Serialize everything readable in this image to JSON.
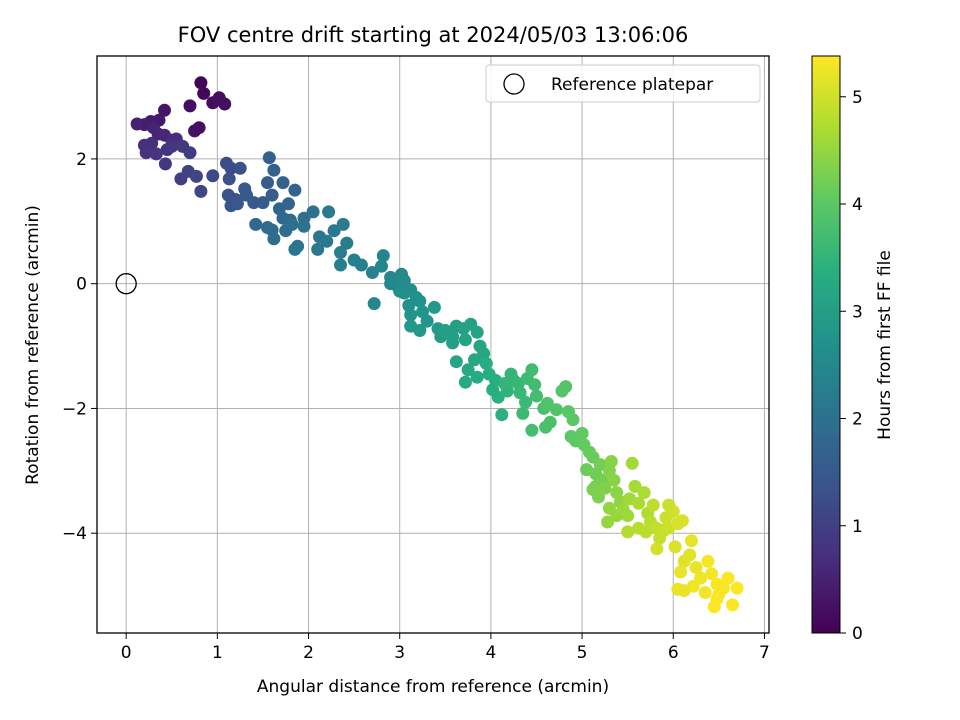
{
  "chart_data": {
    "type": "scatter",
    "title": "FOV centre drift starting at 2024/05/03 13:06:06",
    "xlabel": "Angular distance from reference (arcmin)",
    "ylabel": "Rotation from reference (arcmin)",
    "xlim": [
      -0.32,
      7.05
    ],
    "ylim": [
      -5.6,
      3.65
    ],
    "xticks": [
      0,
      1,
      2,
      3,
      4,
      5,
      6,
      7
    ],
    "yticks": [
      -4,
      -2,
      0,
      2
    ],
    "grid": true,
    "legend": {
      "position": "top-right",
      "entries": [
        {
          "label": "Reference platepar",
          "marker": "open-circle"
        }
      ]
    },
    "reference_point": {
      "x": 0,
      "y": 0
    },
    "colorbar": {
      "label": "Hours from first FF file",
      "colormap": "viridis",
      "range": [
        0,
        5.38
      ],
      "ticks": [
        0,
        1,
        2,
        3,
        4,
        5
      ]
    },
    "points": [
      [
        0.82,
        3.22,
        0.05
      ],
      [
        0.85,
        3.05,
        0.1
      ],
      [
        0.95,
        2.9,
        0.15
      ],
      [
        1.02,
        2.98,
        0.18
      ],
      [
        1.08,
        2.88,
        0.2
      ],
      [
        0.7,
        2.85,
        0.22
      ],
      [
        0.8,
        2.5,
        0.25
      ],
      [
        0.75,
        2.45,
        0.28
      ],
      [
        0.42,
        2.78,
        0.3
      ],
      [
        0.36,
        2.62,
        0.35
      ],
      [
        0.27,
        2.6,
        0.4
      ],
      [
        0.2,
        2.55,
        0.45
      ],
      [
        0.12,
        2.56,
        0.5
      ],
      [
        0.3,
        2.5,
        0.52
      ],
      [
        0.35,
        2.4,
        0.55
      ],
      [
        0.42,
        2.38,
        0.6
      ],
      [
        0.5,
        2.3,
        0.65
      ],
      [
        0.55,
        2.32,
        0.68
      ],
      [
        0.28,
        2.25,
        0.7
      ],
      [
        0.2,
        2.22,
        0.75
      ],
      [
        0.22,
        2.1,
        0.78
      ],
      [
        0.33,
        2.08,
        0.8
      ],
      [
        0.45,
        2.15,
        0.82
      ],
      [
        0.5,
        2.2,
        0.85
      ],
      [
        0.43,
        1.92,
        0.88
      ],
      [
        0.62,
        2.2,
        0.9
      ],
      [
        0.7,
        2.1,
        0.95
      ],
      [
        0.6,
        1.68,
        1.0
      ],
      [
        0.68,
        1.8,
        1.05
      ],
      [
        0.77,
        1.72,
        1.1
      ],
      [
        0.82,
        1.48,
        1.15
      ],
      [
        0.95,
        1.73,
        1.2
      ],
      [
        1.1,
        1.93,
        1.22
      ],
      [
        1.15,
        1.85,
        1.25
      ],
      [
        1.13,
        1.68,
        1.3
      ],
      [
        1.25,
        1.85,
        1.32
      ],
      [
        1.12,
        1.42,
        1.35
      ],
      [
        1.2,
        1.35,
        1.38
      ],
      [
        1.15,
        1.25,
        1.4
      ],
      [
        1.22,
        1.28,
        1.45
      ],
      [
        1.3,
        1.52,
        1.48
      ],
      [
        1.32,
        1.42,
        1.5
      ],
      [
        1.4,
        1.3,
        1.52
      ],
      [
        1.5,
        1.3,
        1.55
      ],
      [
        1.55,
        1.62,
        1.58
      ],
      [
        1.6,
        1.42,
        1.6
      ],
      [
        1.57,
        2.02,
        1.62
      ],
      [
        1.62,
        1.82,
        1.65
      ],
      [
        1.72,
        1.62,
        1.68
      ],
      [
        1.85,
        1.5,
        1.7
      ],
      [
        1.78,
        1.28,
        1.72
      ],
      [
        1.68,
        1.2,
        1.75
      ],
      [
        1.72,
        1.05,
        1.78
      ],
      [
        1.8,
        1.02,
        1.8
      ],
      [
        1.42,
        0.95,
        1.82
      ],
      [
        1.55,
        0.9,
        1.85
      ],
      [
        1.6,
        0.86,
        1.88
      ],
      [
        1.62,
        0.72,
        1.9
      ],
      [
        1.75,
        0.85,
        1.92
      ],
      [
        1.82,
        0.95,
        1.95
      ],
      [
        1.95,
        1.05,
        1.98
      ],
      [
        2.05,
        1.15,
        2.0
      ],
      [
        1.95,
        0.92,
        2.02
      ],
      [
        1.88,
        0.6,
        2.05
      ],
      [
        1.85,
        0.55,
        2.08
      ],
      [
        2.12,
        0.75,
        2.1
      ],
      [
        2.1,
        0.55,
        2.12
      ],
      [
        2.2,
        0.68,
        2.15
      ],
      [
        2.28,
        0.85,
        2.18
      ],
      [
        2.22,
        1.15,
        2.2
      ],
      [
        2.38,
        0.95,
        2.22
      ],
      [
        2.42,
        0.65,
        2.25
      ],
      [
        2.35,
        0.5,
        2.28
      ],
      [
        2.35,
        0.3,
        2.3
      ],
      [
        2.5,
        0.38,
        2.32
      ],
      [
        2.58,
        0.3,
        2.35
      ],
      [
        2.7,
        0.18,
        2.38
      ],
      [
        2.8,
        0.28,
        2.4
      ],
      [
        2.82,
        0.45,
        2.42
      ],
      [
        2.72,
        -0.32,
        2.45
      ],
      [
        2.9,
        0.1,
        2.48
      ],
      [
        2.95,
        0.05,
        2.5
      ],
      [
        3.02,
        0.15,
        2.52
      ],
      [
        3.05,
        0.05,
        2.55
      ],
      [
        2.98,
        -0.05,
        2.58
      ],
      [
        3.05,
        -0.15,
        2.6
      ],
      [
        3.12,
        -0.1,
        2.62
      ],
      [
        3.0,
        -0.12,
        2.65
      ],
      [
        3.1,
        -0.35,
        2.68
      ],
      [
        3.18,
        -0.22,
        2.7
      ],
      [
        3.22,
        -0.28,
        2.72
      ],
      [
        3.12,
        -0.5,
        2.75
      ],
      [
        3.25,
        -0.45,
        2.78
      ],
      [
        3.3,
        -0.6,
        2.8
      ],
      [
        3.12,
        -0.68,
        2.82
      ],
      [
        3.22,
        -0.75,
        2.85
      ],
      [
        3.38,
        -0.38,
        2.88
      ],
      [
        3.42,
        -0.72,
        2.9
      ],
      [
        3.45,
        -0.85,
        2.92
      ],
      [
        3.55,
        -0.8,
        2.95
      ],
      [
        3.5,
        -0.75,
        2.98
      ],
      [
        3.58,
        -0.95,
        3.0
      ],
      [
        3.62,
        -0.68,
        3.02
      ],
      [
        3.7,
        -0.72,
        3.05
      ],
      [
        3.78,
        -0.65,
        3.08
      ],
      [
        3.85,
        -0.78,
        3.1
      ],
      [
        3.72,
        -0.9,
        3.12
      ],
      [
        3.62,
        -1.25,
        3.15
      ],
      [
        3.88,
        -1.0,
        3.18
      ],
      [
        3.92,
        -1.12,
        3.2
      ],
      [
        3.82,
        -1.22,
        3.22
      ],
      [
        3.75,
        -1.38,
        3.25
      ],
      [
        3.72,
        -1.58,
        3.28
      ],
      [
        3.85,
        -1.5,
        3.3
      ],
      [
        3.95,
        -1.28,
        3.32
      ],
      [
        3.98,
        -1.45,
        3.35
      ],
      [
        4.05,
        -1.55,
        3.38
      ],
      [
        4.08,
        -1.82,
        3.4
      ],
      [
        4.12,
        -2.1,
        3.42
      ],
      [
        4.18,
        -1.72,
        3.45
      ],
      [
        4.25,
        -1.55,
        3.48
      ],
      [
        4.15,
        -1.6,
        3.5
      ],
      [
        4.22,
        -1.45,
        3.52
      ],
      [
        4.3,
        -1.6,
        3.55
      ],
      [
        4.32,
        -1.75,
        3.58
      ],
      [
        4.38,
        -1.9,
        3.6
      ],
      [
        4.35,
        -2.08,
        3.62
      ],
      [
        4.4,
        -1.52,
        3.65
      ],
      [
        4.45,
        -1.38,
        3.68
      ],
      [
        4.48,
        -1.62,
        3.7
      ],
      [
        4.5,
        -1.8,
        3.72
      ],
      [
        4.45,
        -2.35,
        3.75
      ],
      [
        4.58,
        -2.0,
        3.78
      ],
      [
        4.6,
        -2.3,
        3.8
      ],
      [
        4.65,
        -2.22,
        3.82
      ],
      [
        4.62,
        -1.92,
        3.85
      ],
      [
        4.72,
        -2.02,
        3.88
      ],
      [
        4.78,
        -1.72,
        3.9
      ],
      [
        4.82,
        -1.65,
        3.92
      ],
      [
        4.85,
        -2.05,
        3.95
      ],
      [
        4.9,
        -2.18,
        3.98
      ],
      [
        4.88,
        -2.45,
        4.0
      ],
      [
        4.93,
        -2.52,
        4.02
      ],
      [
        5.0,
        -2.4,
        4.05
      ],
      [
        5.02,
        -2.58,
        4.08
      ],
      [
        5.08,
        -2.7,
        4.1
      ],
      [
        5.12,
        -2.78,
        4.12
      ],
      [
        5.05,
        -2.98,
        4.15
      ],
      [
        5.15,
        -3.05,
        4.18
      ],
      [
        5.2,
        -2.9,
        4.2
      ],
      [
        5.22,
        -3.15,
        4.22
      ],
      [
        5.15,
        -3.25,
        4.25
      ],
      [
        5.12,
        -3.3,
        4.28
      ],
      [
        5.18,
        -3.42,
        4.3
      ],
      [
        5.25,
        -3.28,
        4.32
      ],
      [
        5.3,
        -3.0,
        4.35
      ],
      [
        5.32,
        -2.85,
        4.38
      ],
      [
        5.35,
        -3.15,
        4.4
      ],
      [
        5.38,
        -3.35,
        4.42
      ],
      [
        5.42,
        -3.5,
        4.45
      ],
      [
        5.3,
        -3.6,
        4.48
      ],
      [
        5.28,
        -3.82,
        4.5
      ],
      [
        5.38,
        -3.72,
        4.52
      ],
      [
        5.45,
        -3.62,
        4.55
      ],
      [
        5.5,
        -3.72,
        4.58
      ],
      [
        5.52,
        -3.45,
        4.6
      ],
      [
        5.55,
        -2.88,
        4.62
      ],
      [
        5.58,
        -3.25,
        4.65
      ],
      [
        5.62,
        -3.52,
        4.68
      ],
      [
        5.68,
        -3.35,
        4.7
      ],
      [
        5.72,
        -3.68,
        4.72
      ],
      [
        5.5,
        -3.98,
        4.75
      ],
      [
        5.62,
        -3.92,
        4.78
      ],
      [
        5.7,
        -3.98,
        4.8
      ],
      [
        5.75,
        -3.82,
        4.82
      ],
      [
        5.78,
        -3.55,
        4.85
      ],
      [
        5.82,
        -3.92,
        4.88
      ],
      [
        5.85,
        -4.08,
        4.9
      ],
      [
        5.9,
        -3.95,
        4.92
      ],
      [
        5.92,
        -3.75,
        4.95
      ],
      [
        5.95,
        -3.92,
        4.98
      ],
      [
        6.0,
        -3.65,
        5.0
      ],
      [
        5.82,
        -4.25,
        5.02
      ],
      [
        6.05,
        -3.85,
        5.05
      ],
      [
        6.1,
        -3.8,
        5.08
      ],
      [
        6.02,
        -4.22,
        5.1
      ],
      [
        6.12,
        -4.45,
        5.12
      ],
      [
        6.18,
        -4.35,
        5.15
      ],
      [
        6.2,
        -4.12,
        5.18
      ],
      [
        6.08,
        -4.62,
        5.2
      ],
      [
        6.25,
        -4.55,
        5.22
      ],
      [
        6.3,
        -4.72,
        5.25
      ],
      [
        6.22,
        -4.85,
        5.27
      ],
      [
        6.35,
        -4.95,
        5.28
      ],
      [
        6.42,
        -4.65,
        5.3
      ],
      [
        6.38,
        -4.45,
        5.31
      ],
      [
        6.48,
        -4.82,
        5.32
      ],
      [
        6.55,
        -4.88,
        5.33
      ],
      [
        6.5,
        -4.98,
        5.34
      ],
      [
        6.48,
        -5.05,
        5.35
      ],
      [
        6.6,
        -4.72,
        5.35
      ],
      [
        6.7,
        -4.88,
        5.36
      ],
      [
        6.65,
        -5.15,
        5.37
      ],
      [
        6.05,
        -4.9,
        5.2
      ],
      [
        6.12,
        -4.92,
        5.22
      ],
      [
        6.45,
        -5.18,
        5.36
      ],
      [
        5.95,
        -3.55,
        4.95
      ],
      [
        4.02,
        -1.7,
        3.35
      ],
      [
        3.58,
        -0.85,
        2.98
      ],
      [
        2.9,
        0.0,
        2.48
      ]
    ]
  }
}
